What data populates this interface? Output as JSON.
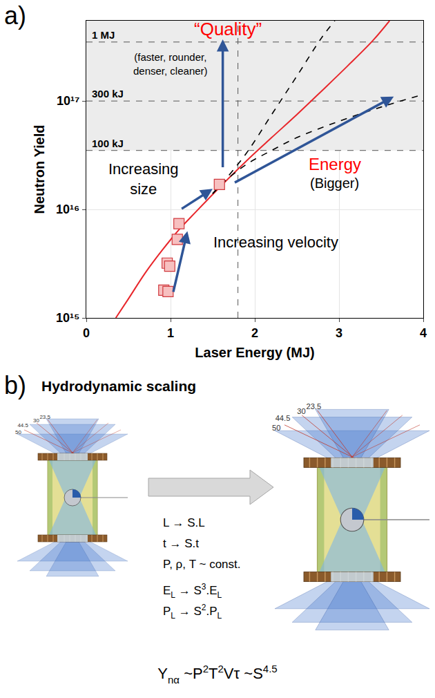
{
  "chart_data": {
    "type": "scatter",
    "panel": "a)",
    "xlabel": "Laser Energy (MJ)",
    "ylabel": "Neutron Yield",
    "log": "y",
    "grid": true,
    "xlim": [
      0,
      4
    ],
    "xticks": [
      0,
      1,
      2,
      3,
      4
    ],
    "ylim": [
      1000000000000000.0,
      5.5e+17
    ],
    "yticks": [
      {
        "value": 1000000000000000.0,
        "label": "10¹⁵"
      },
      {
        "value": 1e+16,
        "label": "10¹⁶"
      },
      {
        "value": 1e+17,
        "label": "10¹⁷"
      }
    ],
    "series": [
      {
        "type": "line",
        "line_style": "solid",
        "color": "#e8262b",
        "x": [
          0.35,
          0.5,
          0.7,
          0.9,
          1.1,
          1.3,
          1.6,
          1.9,
          2.2,
          2.5,
          2.8,
          3.1,
          3.4,
          3.6
        ],
        "values": [
          1000000000000000.0,
          1500000000000000.0,
          2600000000000000.0,
          4200000000000000.0,
          6500000000000000.0,
          9500000000000000.0,
          1.65e+16,
          2.8e+16,
          4.6e+16,
          7.5e+16,
          1.25e+17,
          2.1e+17,
          3.6e+17,
          5.5e+17
        ]
      },
      {
        "type": "line",
        "line_style": "dash",
        "color": "#000000",
        "x": [
          1.5,
          1.6,
          1.9,
          2.2,
          2.5,
          2.8,
          2.95
        ],
        "values": [
          1.4e+16,
          1.7e+16,
          3.3e+16,
          7.5e+16,
          1.7e+17,
          3.9e+17,
          5.5e+17
        ]
      },
      {
        "type": "line",
        "line_style": "dash",
        "color": "#000000",
        "x": [
          1.5,
          1.6,
          1.9,
          2.2,
          2.5,
          3.0,
          3.5,
          4.0
        ],
        "values": [
          1.4e+16,
          1.7e+16,
          2.6e+16,
          3.5e+16,
          4.6e+16,
          6.5e+16,
          8.8e+16,
          1.15e+17
        ]
      },
      {
        "type": "scatter",
        "marker": "square",
        "color": "#f7c0c0",
        "x": [
          0.92,
          0.97,
          0.96,
          0.99,
          1.08,
          1.1,
          1.58
        ],
        "values": [
          1800000000000000.0,
          1750000000000000.0,
          3200000000000000.0,
          3000000000000000.0,
          5300000000000000.0,
          7400000000000000.0,
          1.7e+16
        ]
      }
    ],
    "reference_lines": [
      {
        "label": "1 MJ",
        "value": 3.5e+17
      },
      {
        "label": "300 kJ",
        "value": 1e+17
      },
      {
        "label": "100 kJ",
        "value": 3.5e+16
      }
    ],
    "shaded_above": 3.5e+16,
    "x_lines": [
      1.8
    ],
    "annotations": [
      {
        "text": "“Quality”",
        "x": 1.68,
        "y": 4.6e+17,
        "color": "#ff0000"
      },
      {
        "text": "(faster, rounder,\ndenser, cleaner)",
        "x": 1.0,
        "y": 2.2e+17,
        "color": "#000000"
      },
      {
        "text": "Increasing\nsize",
        "x": 0.68,
        "y": 1.9e+16,
        "color": "#000000"
      },
      {
        "text": "Increasing velocity",
        "x": 2.25,
        "y": 5000000000000000.0,
        "color": "#000000"
      },
      {
        "text": "Energy",
        "x": 2.95,
        "y": 2.6e+16,
        "color": "#ff0000"
      },
      {
        "text": "(Bigger)",
        "x": 2.95,
        "y": 1.75e+16,
        "color": "#000000"
      }
    ],
    "arrows": [
      {
        "x0": 1.62,
        "y0": 2.4e+16,
        "x1": 1.62,
        "y1": 3.7e+17,
        "color": "#2f5597"
      },
      {
        "x0": 1.75,
        "y0": 1.75e+16,
        "x1": 3.65,
        "y1": 1.1e+17,
        "color": "#2f5597"
      },
      {
        "x0": 1.12,
        "y0": 1e+16,
        "x1": 1.5,
        "y1": 1.55e+16,
        "color": "#2f5597"
      },
      {
        "x0": 1.03,
        "y0": 1700000000000000.0,
        "x1": 1.2,
        "y1": 6300000000000000.0,
        "color": "#2f5597"
      }
    ]
  },
  "diagram": {
    "panel": "b)",
    "title": "Hydrodynamic scaling",
    "beam_angles": [
      "50",
      "44.5",
      "30",
      "23.5"
    ],
    "scaling_rules": [
      [
        {
          "t": "L → S.L"
        }
      ],
      [
        {
          "t": "t → S.t"
        }
      ],
      [
        {
          "t": "P, ρ, T ~ const."
        }
      ]
    ],
    "energy_rules": [
      [
        {
          "t": "E"
        },
        {
          "sub": "L"
        },
        {
          "t": " → S"
        },
        {
          "sup": "3"
        },
        {
          "t": ".E"
        },
        {
          "sub": "L"
        }
      ],
      [
        {
          "t": "P"
        },
        {
          "sub": "L"
        },
        {
          "t": " → S"
        },
        {
          "sup": "2"
        },
        {
          "t": ".P"
        },
        {
          "sub": "L"
        }
      ]
    ],
    "yield_law": [
      {
        "t": "Y"
      },
      {
        "sub": "nα"
      },
      {
        "t": " ~P"
      },
      {
        "sup": "2"
      },
      {
        "t": "T"
      },
      {
        "sup": "2"
      },
      {
        "t": "Vτ ~S"
      },
      {
        "sup": "4.5"
      }
    ]
  }
}
